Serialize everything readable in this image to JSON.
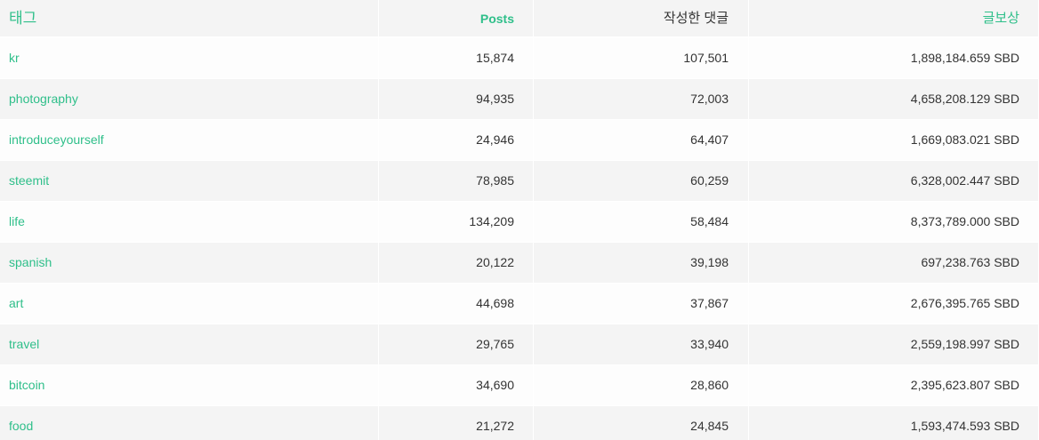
{
  "header": {
    "tag": "태그",
    "posts": "Posts",
    "comments": "작성한 댓글",
    "rewards": "글보상"
  },
  "rows": [
    {
      "tag": "kr",
      "posts": "15,874",
      "comments": "107,501",
      "rewards": "1,898,184.659 SBD"
    },
    {
      "tag": "photography",
      "posts": "94,935",
      "comments": "72,003",
      "rewards": "4,658,208.129 SBD"
    },
    {
      "tag": "introduceyourself",
      "posts": "24,946",
      "comments": "64,407",
      "rewards": "1,669,083.021 SBD"
    },
    {
      "tag": "steemit",
      "posts": "78,985",
      "comments": "60,259",
      "rewards": "6,328,002.447 SBD"
    },
    {
      "tag": "life",
      "posts": "134,209",
      "comments": "58,484",
      "rewards": "8,373,789.000 SBD"
    },
    {
      "tag": "spanish",
      "posts": "20,122",
      "comments": "39,198",
      "rewards": "697,238.763 SBD"
    },
    {
      "tag": "art",
      "posts": "44,698",
      "comments": "37,867",
      "rewards": "2,676,395.765 SBD"
    },
    {
      "tag": "travel",
      "posts": "29,765",
      "comments": "33,940",
      "rewards": "2,559,198.997 SBD"
    },
    {
      "tag": "bitcoin",
      "posts": "34,690",
      "comments": "28,860",
      "rewards": "2,395,623.807 SBD"
    },
    {
      "tag": "food",
      "posts": "21,272",
      "comments": "24,845",
      "rewards": "1,593,474.593 SBD"
    }
  ],
  "colors": {
    "accent": "#2fbf8a",
    "text": "#333333",
    "row_alt": "#f4f4f4",
    "row": "#fdfdfd"
  }
}
